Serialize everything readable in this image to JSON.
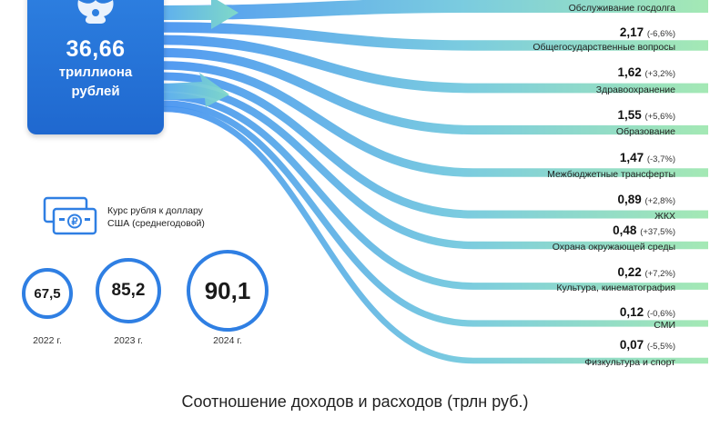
{
  "total": {
    "value": "36,66",
    "unit_line1": "триллиона",
    "unit_line2": "рублей"
  },
  "chart_data": {
    "type": "sankey",
    "title": "",
    "source_value": 36.66,
    "unit": "трлн руб.",
    "items": [
      {
        "name": "Обслуживание госдолга",
        "value": null,
        "change": ""
      },
      {
        "name": "Общегосударственные вопросы",
        "value": "2,17",
        "change": "(-6,6%)"
      },
      {
        "name": "Здравоохранение",
        "value": "1,62",
        "change": "(+3,2%)"
      },
      {
        "name": "Образование",
        "value": "1,55",
        "change": "(+5,6%)"
      },
      {
        "name": "Межбюджетные трансферты",
        "value": "1,47",
        "change": "(-3,7%)"
      },
      {
        "name": "ЖКХ",
        "value": "0,89",
        "change": "(+2,8%)"
      },
      {
        "name": "Охрана окружающей среды",
        "value": "0,48",
        "change": "(+37,5%)"
      },
      {
        "name": "Культура, кинематография",
        "value": "0,22",
        "change": "(+7,2%)"
      },
      {
        "name": "СМИ",
        "value": "0,12",
        "change": "(-0,6%)"
      },
      {
        "name": "Физкультура и спорт",
        "value": "0,07",
        "change": "(-5,5%)"
      }
    ]
  },
  "exchange_rate": {
    "caption_line1": "Курс рубля к доллару",
    "caption_line2": "США (среднегодовой)",
    "years": [
      {
        "year": "2022 г.",
        "value": "67,5",
        "value_num": 67.5
      },
      {
        "year": "2023 г.",
        "value": "85,2",
        "value_num": 85.2
      },
      {
        "year": "2024 г.",
        "value": "90,1",
        "value_num": 90.1
      }
    ]
  },
  "bottom_title": "Соотношение доходов и расходов (трлн руб.)",
  "colors": {
    "blue": "#2f7fe3",
    "dark_blue": "#1f68cf",
    "green": "#8fe0a8"
  }
}
